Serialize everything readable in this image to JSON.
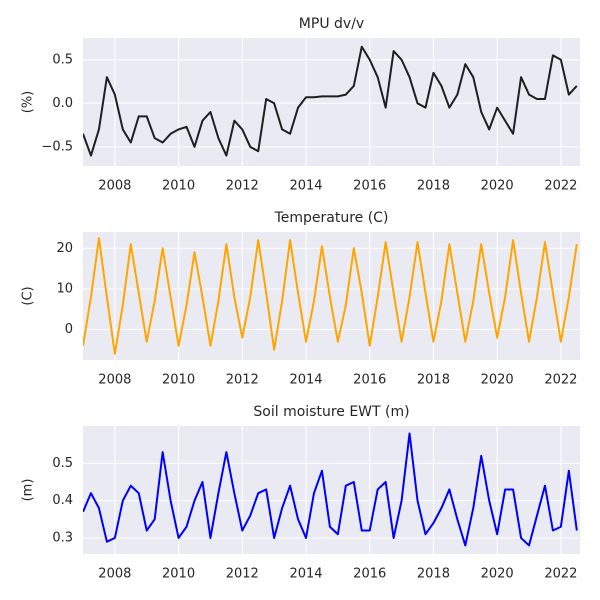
{
  "chart_data": [
    {
      "type": "line",
      "title": "MPU dv/v",
      "ylabel": "(%)",
      "color": "#1f1f1f",
      "grid": true,
      "xlim": [
        2007.0,
        2022.6
      ],
      "xticks": [
        2008,
        2010,
        2012,
        2014,
        2016,
        2018,
        2020,
        2022
      ],
      "ylim": [
        -0.72,
        0.75
      ],
      "yticks": [
        {
          "value": -0.5,
          "label": "−0.5"
        },
        {
          "value": 0,
          "label": "0.0"
        },
        0.5
      ],
      "x": [
        2007.0,
        2007.25,
        2007.5,
        2007.75,
        2008.0,
        2008.25,
        2008.5,
        2008.75,
        2009.0,
        2009.25,
        2009.5,
        2009.75,
        2010.0,
        2010.25,
        2010.5,
        2010.75,
        2011.0,
        2011.25,
        2011.5,
        2011.75,
        2012.0,
        2012.25,
        2012.5,
        2012.75,
        2013.0,
        2013.25,
        2013.5,
        2013.75,
        2014.0,
        2014.25,
        2014.5,
        2014.75,
        2015.0,
        2015.25,
        2015.5,
        2015.75,
        2016.0,
        2016.25,
        2016.5,
        2016.75,
        2017.0,
        2017.25,
        2017.5,
        2017.75,
        2018.0,
        2018.25,
        2018.5,
        2018.75,
        2019.0,
        2019.25,
        2019.5,
        2019.75,
        2020.0,
        2020.25,
        2020.5,
        2020.75,
        2021.0,
        2021.25,
        2021.5,
        2021.75,
        2022.0,
        2022.25,
        2022.5
      ],
      "values": [
        -0.35,
        -0.6,
        -0.3,
        0.3,
        0.1,
        -0.3,
        -0.45,
        -0.15,
        -0.15,
        -0.4,
        -0.45,
        -0.35,
        -0.3,
        -0.27,
        -0.5,
        -0.2,
        -0.1,
        -0.4,
        -0.6,
        -0.2,
        -0.3,
        -0.5,
        -0.55,
        0.05,
        0.0,
        -0.3,
        -0.35,
        -0.05,
        0.07,
        0.07,
        0.08,
        0.08,
        0.08,
        0.1,
        0.2,
        0.65,
        0.5,
        0.3,
        -0.05,
        0.6,
        0.5,
        0.3,
        0.0,
        -0.05,
        0.35,
        0.2,
        -0.05,
        0.1,
        0.45,
        0.3,
        -0.1,
        -0.3,
        -0.05,
        -0.2,
        -0.35,
        0.3,
        0.1,
        0.05,
        0.05,
        0.55,
        0.5,
        0.1,
        0.2
      ]
    },
    {
      "type": "line",
      "title": "Temperature (C)",
      "ylabel": "(C)",
      "color": "#ffa500",
      "grid": true,
      "xlim": [
        2007.0,
        2022.6
      ],
      "xticks": [
        2008,
        2010,
        2012,
        2014,
        2016,
        2018,
        2020,
        2022
      ],
      "ylim": [
        -7.5,
        24
      ],
      "yticks": [
        0,
        10,
        20
      ],
      "x": [
        2007.0,
        2007.25,
        2007.5,
        2007.75,
        2008.0,
        2008.25,
        2008.5,
        2008.75,
        2009.0,
        2009.25,
        2009.5,
        2009.75,
        2010.0,
        2010.25,
        2010.5,
        2010.75,
        2011.0,
        2011.25,
        2011.5,
        2011.75,
        2012.0,
        2012.25,
        2012.5,
        2012.75,
        2013.0,
        2013.25,
        2013.5,
        2013.75,
        2014.0,
        2014.25,
        2014.5,
        2014.75,
        2015.0,
        2015.25,
        2015.5,
        2015.75,
        2016.0,
        2016.25,
        2016.5,
        2016.75,
        2017.0,
        2017.25,
        2017.5,
        2017.75,
        2018.0,
        2018.25,
        2018.5,
        2018.75,
        2019.0,
        2019.25,
        2019.5,
        2019.75,
        2020.0,
        2020.25,
        2020.5,
        2020.75,
        2021.0,
        2021.25,
        2021.5,
        2021.75,
        2022.0,
        2022.25,
        2022.5
      ],
      "values": [
        -4,
        8,
        22.5,
        8,
        -6,
        6,
        21,
        9,
        -3,
        7,
        20,
        8,
        -4,
        6,
        19,
        8,
        -4,
        7,
        21,
        8,
        -2,
        8,
        22,
        9,
        -5,
        7,
        22,
        9,
        -3,
        7,
        20.5,
        8,
        -3,
        6,
        20,
        9,
        -4,
        8,
        21.5,
        9,
        -3,
        8,
        21.5,
        9,
        -3,
        7,
        21,
        9,
        -3,
        7,
        21,
        9,
        -2,
        8,
        22,
        9,
        -3,
        8,
        21.5,
        9,
        -3,
        8,
        21
      ]
    },
    {
      "type": "line",
      "title": "Soil moisture EWT (m)",
      "ylabel": "(m)",
      "color": "#0000ff",
      "grid": true,
      "xlim": [
        2007.0,
        2022.6
      ],
      "xticks": [
        2008,
        2010,
        2012,
        2014,
        2016,
        2018,
        2020,
        2022
      ],
      "ylim": [
        0.257,
        0.6
      ],
      "yticks": [
        0.3,
        0.4,
        0.5
      ],
      "x": [
        2007.0,
        2007.25,
        2007.5,
        2007.75,
        2008.0,
        2008.25,
        2008.5,
        2008.75,
        2009.0,
        2009.25,
        2009.5,
        2009.75,
        2010.0,
        2010.25,
        2010.5,
        2010.75,
        2011.0,
        2011.25,
        2011.5,
        2011.75,
        2012.0,
        2012.25,
        2012.5,
        2012.75,
        2013.0,
        2013.25,
        2013.5,
        2013.75,
        2014.0,
        2014.25,
        2014.5,
        2014.75,
        2015.0,
        2015.25,
        2015.5,
        2015.75,
        2016.0,
        2016.25,
        2016.5,
        2016.75,
        2017.0,
        2017.25,
        2017.5,
        2017.75,
        2018.0,
        2018.25,
        2018.5,
        2018.75,
        2019.0,
        2019.25,
        2019.5,
        2019.75,
        2020.0,
        2020.25,
        2020.5,
        2020.75,
        2021.0,
        2021.25,
        2021.5,
        2021.75,
        2022.0,
        2022.25,
        2022.5
      ],
      "values": [
        0.37,
        0.42,
        0.38,
        0.29,
        0.3,
        0.4,
        0.44,
        0.42,
        0.32,
        0.35,
        0.53,
        0.4,
        0.3,
        0.33,
        0.4,
        0.45,
        0.3,
        0.42,
        0.53,
        0.42,
        0.32,
        0.36,
        0.42,
        0.43,
        0.3,
        0.38,
        0.44,
        0.35,
        0.3,
        0.42,
        0.48,
        0.33,
        0.31,
        0.44,
        0.45,
        0.32,
        0.32,
        0.43,
        0.45,
        0.3,
        0.4,
        0.58,
        0.4,
        0.31,
        0.34,
        0.38,
        0.43,
        0.35,
        0.28,
        0.38,
        0.52,
        0.4,
        0.31,
        0.43,
        0.43,
        0.3,
        0.28,
        0.36,
        0.44,
        0.32,
        0.33,
        0.48,
        0.32
      ]
    }
  ]
}
